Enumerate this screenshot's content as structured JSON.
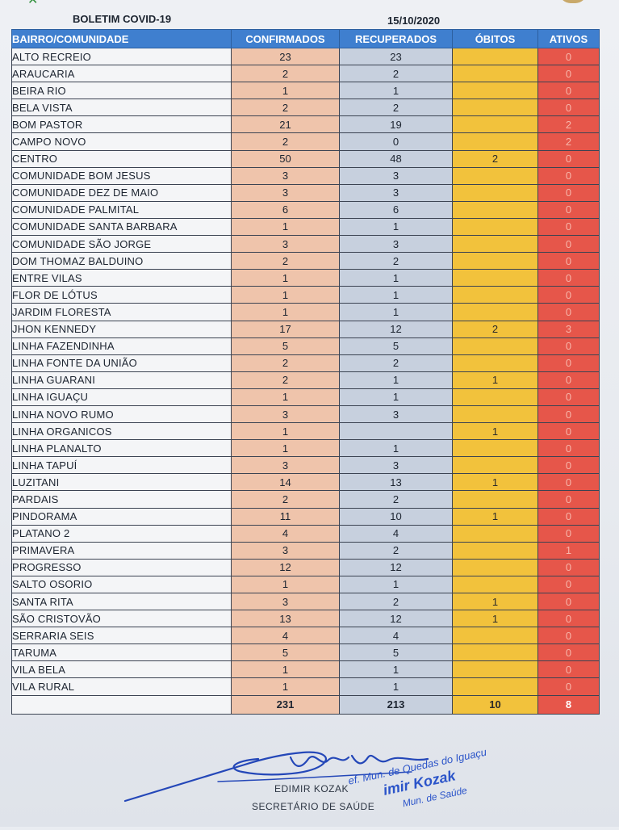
{
  "header": {
    "title": "BOLETIM COVID-19",
    "date": "15/10/2020"
  },
  "table": {
    "columns": [
      "BAIRRO/COMUNIDADE",
      "CONFIRMADOS",
      "RECUPERADOS",
      "ÓBITOS",
      "ATIVOS"
    ],
    "rows": [
      [
        "ALTO RECREIO",
        "23",
        "23",
        "",
        "0"
      ],
      [
        "ARAUCARIA",
        "2",
        "2",
        "",
        "0"
      ],
      [
        "BEIRA RIO",
        "1",
        "1",
        "",
        "0"
      ],
      [
        "BELA VISTA",
        "2",
        "2",
        "",
        "0"
      ],
      [
        "BOM PASTOR",
        "21",
        "19",
        "",
        "2"
      ],
      [
        "CAMPO NOVO",
        "2",
        "0",
        "",
        "2"
      ],
      [
        "CENTRO",
        "50",
        "48",
        "2",
        "0"
      ],
      [
        "COMUNIDADE BOM JESUS",
        "3",
        "3",
        "",
        "0"
      ],
      [
        "COMUNIDADE DEZ DE MAIO",
        "3",
        "3",
        "",
        "0"
      ],
      [
        "COMUNIDADE PALMITAL",
        "6",
        "6",
        "",
        "0"
      ],
      [
        "COMUNIDADE SANTA BARBARA",
        "1",
        "1",
        "",
        "0"
      ],
      [
        "COMUNIDADE SÃO JORGE",
        "3",
        "3",
        "",
        "0"
      ],
      [
        "DOM THOMAZ BALDUINO",
        "2",
        "2",
        "",
        "0"
      ],
      [
        "ENTRE VILAS",
        "1",
        "1",
        "",
        "0"
      ],
      [
        "FLOR DE LÓTUS",
        "1",
        "1",
        "",
        "0"
      ],
      [
        "JARDIM FLORESTA",
        "1",
        "1",
        "",
        "0"
      ],
      [
        "JHON KENNEDY",
        "17",
        "12",
        "2",
        "3"
      ],
      [
        "LINHA FAZENDINHA",
        "5",
        "5",
        "",
        "0"
      ],
      [
        "LINHA FONTE DA UNIÃO",
        "2",
        "2",
        "",
        "0"
      ],
      [
        "LINHA GUARANI",
        "2",
        "1",
        "1",
        "0"
      ],
      [
        "LINHA IGUAÇU",
        "1",
        "1",
        "",
        "0"
      ],
      [
        "LINHA NOVO RUMO",
        "3",
        "3",
        "",
        "0"
      ],
      [
        "LINHA ORGANICOS",
        "1",
        "",
        "1",
        "0"
      ],
      [
        "LINHA PLANALTO",
        "1",
        "1",
        "",
        "0"
      ],
      [
        "LINHA TAPUÍ",
        "3",
        "3",
        "",
        "0"
      ],
      [
        "LUZITANI",
        "14",
        "13",
        "1",
        "0"
      ],
      [
        "PARDAIS",
        "2",
        "2",
        "",
        "0"
      ],
      [
        "PINDORAMA",
        "11",
        "10",
        "1",
        "0"
      ],
      [
        "PLATANO 2",
        "4",
        "4",
        "",
        "0"
      ],
      [
        "PRIMAVERA",
        "3",
        "2",
        "",
        "1"
      ],
      [
        "PROGRESSO",
        "12",
        "12",
        "",
        "0"
      ],
      [
        "SALTO OSORIO",
        "1",
        "1",
        "",
        "0"
      ],
      [
        "SANTA RITA",
        "3",
        "2",
        "1",
        "0"
      ],
      [
        "SÃO CRISTOVÃO",
        "13",
        "12",
        "1",
        "0"
      ],
      [
        "SERRARIA SEIS",
        "4",
        "4",
        "",
        "0"
      ],
      [
        "TARUMA",
        "5",
        "5",
        "",
        "0"
      ],
      [
        "VILA BELA",
        "1",
        "1",
        "",
        "0"
      ],
      [
        "VILA RURAL",
        "1",
        "1",
        "",
        "0"
      ]
    ],
    "totals": [
      "",
      "231",
      "213",
      "10",
      "8"
    ]
  },
  "signature": {
    "name": "EDIMIR KOZAK",
    "role": "SECRETÁRIO DE SAÚDE"
  },
  "stamp": {
    "line1": "ef. Mun. de Quedas do Iguaçu",
    "line2": "imir Kozak",
    "line3": "Mun. de Saúde"
  },
  "colors": {
    "header_bg": "#3f7fcf",
    "confirmados_bg": "#efc4ab",
    "recuperados_bg": "#c7d0de",
    "obitos_bg": "#f2c23c",
    "ativos_bg": "#e6564a",
    "stamp_ink": "#2b54c9"
  }
}
